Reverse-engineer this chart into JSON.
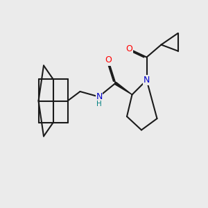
{
  "bg_color": "#ebebeb",
  "line_color": "#1a1a1a",
  "bond_width": 1.5,
  "atom_colors": {
    "O": "#ff0000",
    "N": "#0000cc",
    "C": "#1a1a1a",
    "H": "#008080"
  },
  "font_size_atom": 9,
  "font_size_H": 7
}
